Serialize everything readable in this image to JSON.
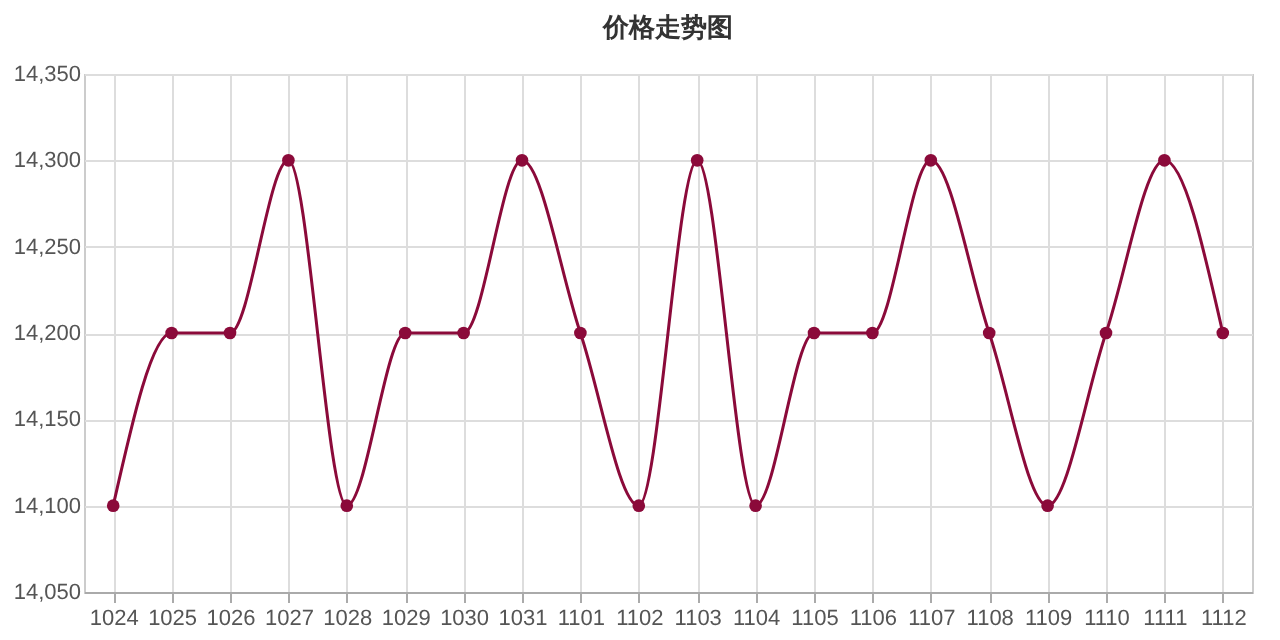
{
  "chart_data": {
    "type": "line",
    "title": "价格走势图",
    "categories": [
      "1024",
      "1025",
      "1026",
      "1027",
      "1028",
      "1029",
      "1030",
      "1031",
      "1101",
      "1102",
      "1103",
      "1104",
      "1105",
      "1106",
      "1107",
      "1108",
      "1109",
      "1110",
      "1111",
      "1112"
    ],
    "series": [
      {
        "color": "#8b0a3a",
        "values": [
          14100,
          14200,
          14200,
          14300,
          14100,
          14200,
          14200,
          14300,
          14200,
          14100,
          14300,
          14100,
          14200,
          14200,
          14300,
          14200,
          14100,
          14200,
          14300,
          14200
        ]
      }
    ],
    "ylim": [
      14050,
      14350
    ],
    "yticks": [
      {
        "value": 14050,
        "label": "14,050"
      },
      {
        "value": 14100,
        "label": "14,100"
      },
      {
        "value": 14150,
        "label": "14,150"
      },
      {
        "value": 14200,
        "label": "14,200"
      },
      {
        "value": 14250,
        "label": "14,250"
      },
      {
        "value": 14300,
        "label": "14,300"
      },
      {
        "value": 14350,
        "label": "14,350"
      }
    ],
    "grid": true,
    "marker": "circle",
    "line_style": "solid"
  }
}
